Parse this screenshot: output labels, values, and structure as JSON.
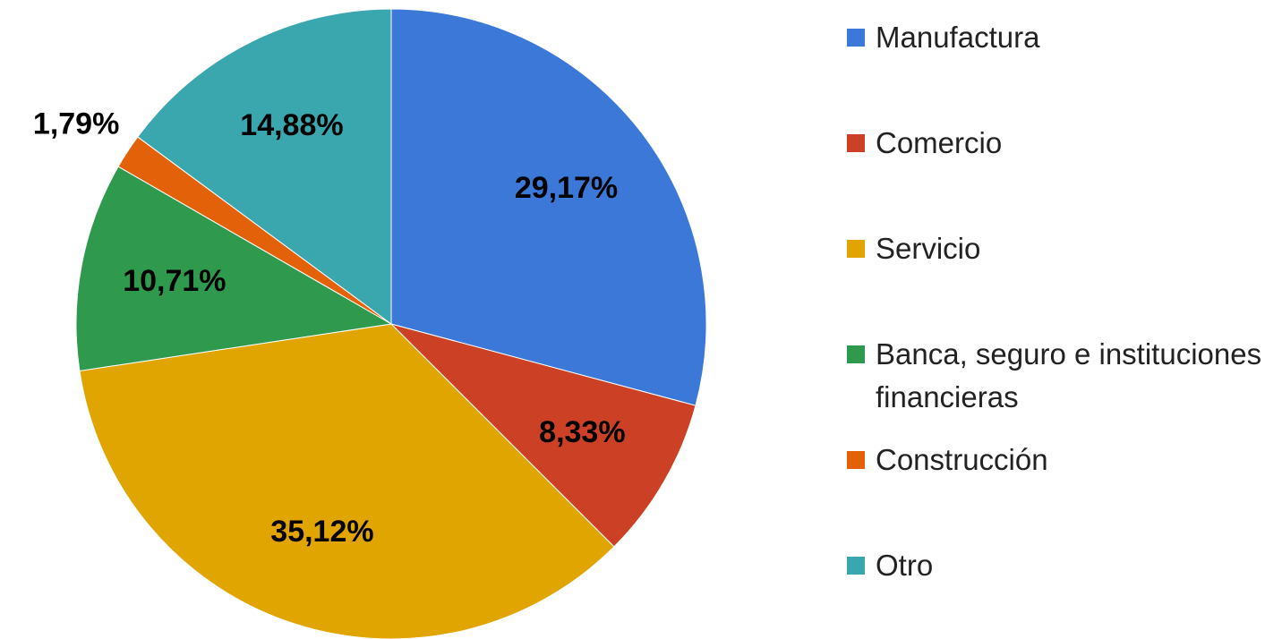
{
  "chart_data": {
    "type": "pie",
    "categories": [
      "Manufactura",
      "Comercio",
      "Servicio",
      "Banca, seguro e instituciones financieras",
      "Construcción",
      "Otro"
    ],
    "values": [
      29.17,
      8.33,
      35.12,
      10.71,
      1.79,
      14.88
    ],
    "value_labels": [
      "29,17%",
      "8,33%",
      "35,12%",
      "10,71%",
      "1,79%",
      "14,88%"
    ],
    "colors": [
      "#3c78d8",
      "#cc4125",
      "#e0a500",
      "#2f9a4d",
      "#e36209",
      "#3aa6ae"
    ],
    "legend": "right"
  }
}
